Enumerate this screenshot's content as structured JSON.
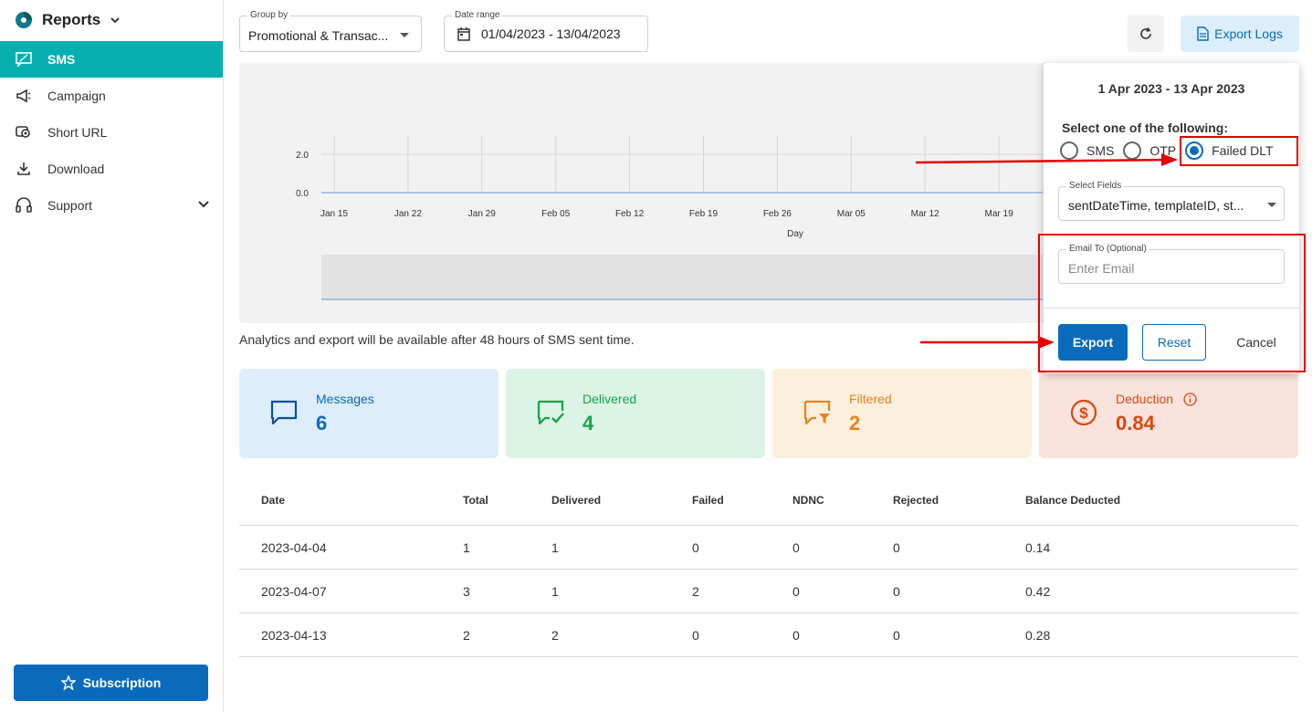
{
  "sidebar": {
    "brand": "Reports",
    "items": [
      {
        "label": "SMS",
        "icon": "sms-icon"
      },
      {
        "label": "Campaign",
        "icon": "megaphone-icon"
      },
      {
        "label": "Short URL",
        "icon": "link-icon"
      },
      {
        "label": "Download",
        "icon": "download-icon"
      },
      {
        "label": "Support",
        "icon": "headset-icon"
      }
    ],
    "subscription": "Subscription"
  },
  "filters": {
    "group_by_label": "Group by",
    "group_by_value": "Promotional & Transac...",
    "date_range_label": "Date range",
    "date_range_value": "01/04/2023 - 13/04/2023"
  },
  "toolbar": {
    "export_logs": "Export Logs"
  },
  "chart_data": {
    "type": "line",
    "x": [
      "Jan 15",
      "Jan 22",
      "Jan 29",
      "Feb 05",
      "Feb 12",
      "Feb 19",
      "Feb 26",
      "Mar 05",
      "Mar 12",
      "Mar 19"
    ],
    "y_ticks": [
      "0.0",
      "2.0"
    ],
    "xlabel": "Day",
    "series": [
      {
        "values": [
          0,
          0,
          0,
          0,
          0,
          0,
          0,
          0,
          0,
          0
        ]
      }
    ],
    "grid": true
  },
  "notice": "Analytics and export will be available after 48 hours of SMS sent time.",
  "stats": [
    {
      "title": "Messages",
      "value": "6",
      "color": "#0a6bbd",
      "bg": "#deedfb"
    },
    {
      "title": "Delivered",
      "value": "4",
      "color": "#16a34a",
      "bg": "#dcf4e5"
    },
    {
      "title": "Filtered",
      "value": "2",
      "color": "#e8821e",
      "bg": "#fcefdc"
    },
    {
      "title": "Deduction",
      "value": "0.84",
      "color": "#d9480f",
      "bg": "#fbe3dd"
    }
  ],
  "table": {
    "headers": [
      "Date",
      "Total",
      "Delivered",
      "Failed",
      "NDNC",
      "Rejected",
      "Balance Deducted"
    ],
    "rows": [
      [
        "2023-04-04",
        "1",
        "1",
        "0",
        "0",
        "0",
        "0.14"
      ],
      [
        "2023-04-07",
        "3",
        "1",
        "2",
        "0",
        "0",
        "0.42"
      ],
      [
        "2023-04-13",
        "2",
        "2",
        "0",
        "0",
        "0",
        "0.28"
      ]
    ]
  },
  "popup": {
    "date_title": "1 Apr 2023 - 13 Apr 2023",
    "select_label": "Select one of the following:",
    "options": [
      "SMS",
      "OTP",
      "Failed DLT"
    ],
    "selected": "Failed DLT",
    "fields_label": "Select Fields",
    "fields_value": "sentDateTime, templateID, st...",
    "email_label": "Email To (Optional)",
    "email_placeholder": "Enter Email",
    "export": "Export",
    "reset": "Reset",
    "cancel": "Cancel"
  },
  "colors": {
    "accent": "#06b0b0",
    "primary": "#0a6bbd",
    "annotation": "#e60000"
  }
}
